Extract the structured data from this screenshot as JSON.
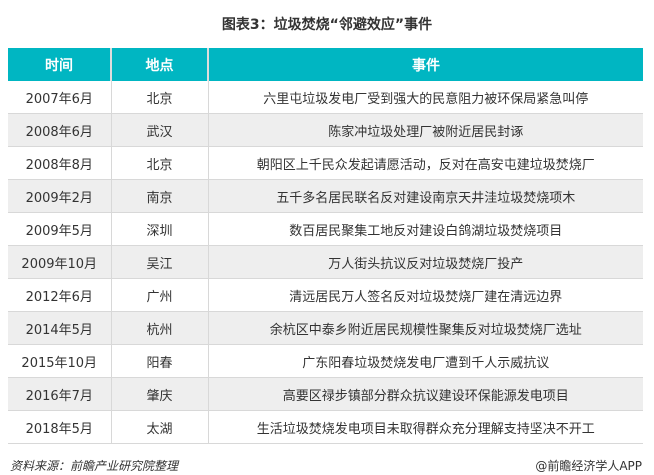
{
  "title": "图表3：垃圾焚烧“邻避效应”事件",
  "table": {
    "headers": [
      "时间",
      "地点",
      "事件"
    ],
    "rows": [
      [
        "2007年6月",
        "北京",
        "六里屯垃圾发电厂受到强大的民意阻力被环保局紧急叫停"
      ],
      [
        "2008年6月",
        "武汉",
        "陈家冲垃圾处理厂被附近居民封诼"
      ],
      [
        "2008年8月",
        "北京",
        "朝阳区上千民众发起请愿活动，反对在高安屯建垃圾焚烧厂"
      ],
      [
        "2009年2月",
        "南京",
        "五千多名居民联名反对建设南京天井洼垃圾焚烧项木"
      ],
      [
        "2009年5月",
        "深圳",
        "数百居民聚集工地反对建设白鸽湖垃圾焚烧项目"
      ],
      [
        "2009年10月",
        "吴江",
        "万人街头抗议反对垃圾焚烧厂投产"
      ],
      [
        "2012年6月",
        "广州",
        "清远居民万人签名反对垃圾焚烧厂建在清远边界"
      ],
      [
        "2014年5月",
        "杭州",
        "余杭区中泰乡附近居民规模性聚集反对垃圾焚烧厂选址"
      ],
      [
        "2015年10月",
        "阳春",
        "广东阳春垃圾焚烧发电厂遭到千人示威抗议"
      ],
      [
        "2016年7月",
        "肇庆",
        "高要区禄步镇部分群众抗议建设环保能源发电项目"
      ],
      [
        "2018年5月",
        "太湖",
        "生活垃圾焚烧发电项目未取得群众充分理解支持坚决不开工"
      ]
    ]
  },
  "footer": {
    "source": "资料来源：前瞻产业研究院整理",
    "brand": "@前瞻经济学人APP"
  },
  "colors": {
    "header_bg": "#00b6c2",
    "alt_row_bg": "#eeeeee"
  }
}
